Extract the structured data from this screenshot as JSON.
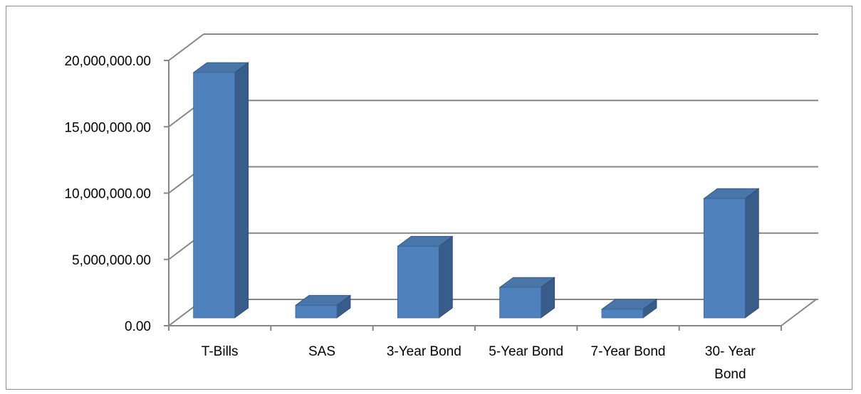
{
  "chart_data": {
    "type": "bar",
    "style": "3d-column",
    "categories": [
      "T-Bills",
      "SAS",
      "3-Year Bond",
      "5-Year Bond",
      "7-Year Bond",
      "30- Year Bond"
    ],
    "category_lines": [
      [
        "T-Bills"
      ],
      [
        "SAS"
      ],
      [
        "3-Year Bond"
      ],
      [
        "5-Year Bond"
      ],
      [
        "7-Year Bond"
      ],
      [
        "30- Year",
        "Bond"
      ]
    ],
    "values": [
      18500000,
      950000,
      5400000,
      2300000,
      650000,
      9000000
    ],
    "ylim": [
      0,
      20000000
    ],
    "yticks": [
      0,
      5000000,
      10000000,
      15000000,
      20000000
    ],
    "ytick_labels": [
      "0.00",
      "5,000,000.00",
      "10,000,000.00",
      "15,000,000.00",
      "20,000,000.00"
    ],
    "grid": true,
    "legend": "none",
    "colors": {
      "bar_front": "#4f81bd",
      "bar_top": "#4a75a8",
      "bar_side": "#385d8a",
      "grid": "#868686",
      "axis": "#868686"
    }
  }
}
